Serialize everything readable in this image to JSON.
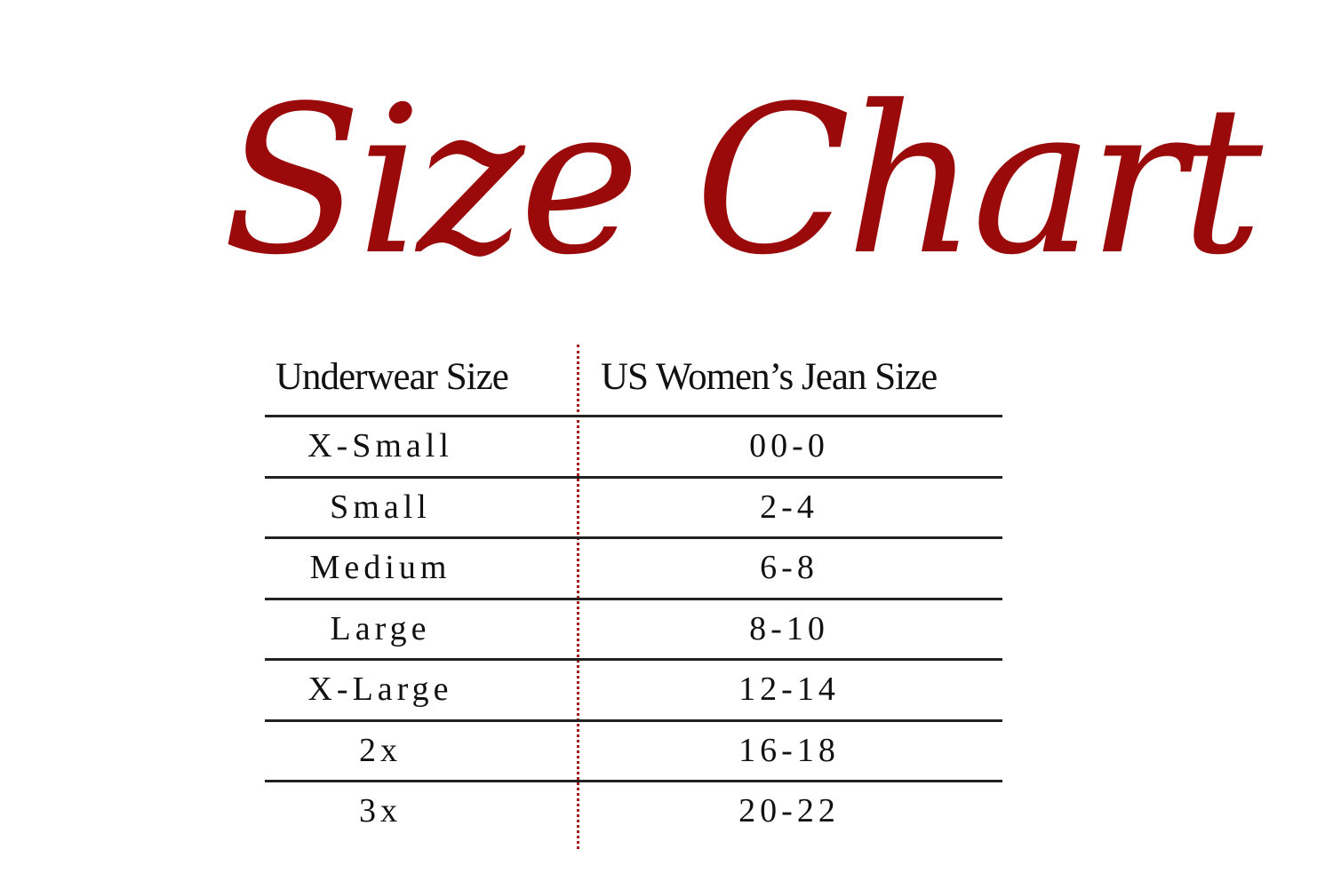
{
  "title": "Size Chart",
  "colors": {
    "accent": "#9b0a0a",
    "text": "#111111"
  },
  "table": {
    "headers": [
      "Underwear Size",
      "US Women’s Jean Size"
    ],
    "rows": [
      [
        "X-Small",
        "00-0"
      ],
      [
        "Small",
        "2-4"
      ],
      [
        "Medium",
        "6-8"
      ],
      [
        "Large",
        "8-10"
      ],
      [
        "X-Large",
        "12-14"
      ],
      [
        "2x",
        "16-18"
      ],
      [
        "3x",
        "20-22"
      ]
    ]
  }
}
